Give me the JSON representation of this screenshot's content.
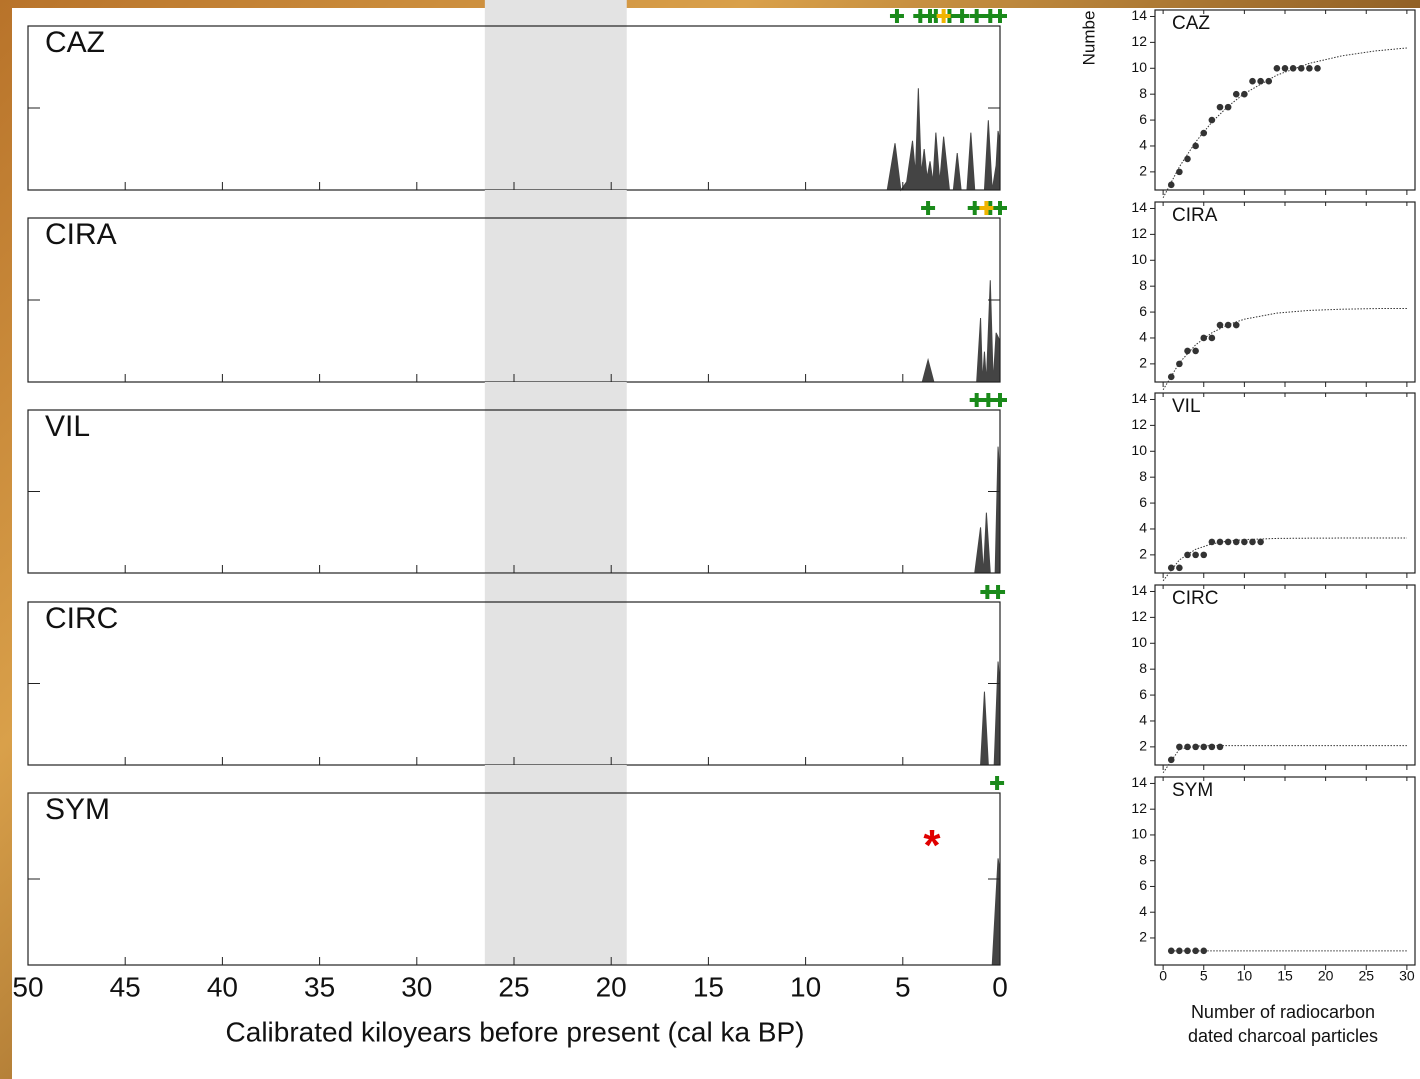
{
  "chart_data": [
    {
      "type": "area",
      "title": "CAZ",
      "color": "#444444",
      "x": [
        5.8,
        5.4,
        5.1,
        4.8,
        4.5,
        4.35,
        4.2,
        4.05,
        3.9,
        3.75,
        3.6,
        3.45,
        3.3,
        3.1,
        2.9,
        2.6,
        2.4,
        2.2,
        2.0,
        1.7,
        1.5,
        1.3,
        0.8,
        0.6,
        0.4,
        0.2,
        0.1,
        0
      ],
      "values": [
        0,
        0.57,
        0,
        0.1,
        0.6,
        0.2,
        1.24,
        0.2,
        0.5,
        0.15,
        0.35,
        0.1,
        0.7,
        0.1,
        0.65,
        0,
        0,
        0.45,
        0,
        0,
        0.7,
        0,
        0,
        0.85,
        0,
        0.3,
        0.72,
        0.6
      ],
      "xlim": [
        50,
        0
      ],
      "ylim": [
        0,
        2
      ],
      "yticks": [
        1
      ],
      "xticks": [
        50,
        45,
        40,
        35,
        30,
        25,
        20,
        15,
        10,
        5,
        0
      ],
      "shaded_span": [
        26.5,
        19.2
      ],
      "dated_ages": [
        5.3,
        4.1,
        3.6,
        3.3,
        2.6,
        1.95,
        1.2,
        0.5,
        0
      ],
      "highlight_ages": [
        2.9
      ]
    },
    {
      "type": "area",
      "title": "CIRA",
      "color": "#444444",
      "x": [
        4.0,
        3.7,
        3.4,
        1.2,
        1.0,
        0.9,
        0.8,
        0.7,
        0.5,
        0.35,
        0.2,
        0
      ],
      "values": [
        0,
        0.27,
        0,
        0,
        0.78,
        0,
        0.37,
        0,
        1.24,
        0,
        0.6,
        0.5
      ],
      "xlim": [
        50,
        0
      ],
      "ylim": [
        0,
        2
      ],
      "yticks": [
        1
      ],
      "xticks": [
        50,
        45,
        40,
        35,
        30,
        25,
        20,
        15,
        10,
        5,
        0
      ],
      "shaded_span": [
        26.5,
        19.2
      ],
      "dated_ages": [
        3.7,
        1.3,
        0.5,
        0
      ],
      "highlight_ages": [
        0.7
      ]
    },
    {
      "type": "area",
      "title": "VIL",
      "color": "#444444",
      "x": [
        1.3,
        1.0,
        0.85,
        0.7,
        0.5,
        0.25,
        0.1,
        0
      ],
      "values": [
        0,
        0.56,
        0,
        0.74,
        0,
        0,
        1.55,
        1.2
      ],
      "xlim": [
        50,
        0
      ],
      "ylim": [
        0,
        2
      ],
      "yticks": [
        1
      ],
      "xticks": [
        50,
        45,
        40,
        35,
        30,
        25,
        20,
        15,
        10,
        5,
        0
      ],
      "shaded_span": [
        26.5,
        19.2
      ],
      "dated_ages": [
        1.2,
        0.6,
        0
      ]
    },
    {
      "type": "area",
      "title": "CIRC",
      "color": "#444444",
      "x": [
        1.0,
        0.8,
        0.6,
        0.3,
        0.1,
        0
      ],
      "values": [
        0,
        0.9,
        0,
        0,
        1.27,
        1.0
      ],
      "xlim": [
        50,
        0
      ],
      "ylim": [
        0,
        2
      ],
      "yticks": [
        1
      ],
      "xticks": [
        50,
        45,
        40,
        35,
        30,
        25,
        20,
        15,
        10,
        5,
        0
      ],
      "shaded_span": [
        26.5,
        19.2
      ],
      "dated_ages": [
        0.65,
        0.1
      ]
    },
    {
      "type": "area",
      "title": "SYM",
      "color": "#444444",
      "x": [
        0.4,
        0.1,
        0
      ],
      "values": [
        0,
        1.24,
        1.1
      ],
      "xlim": [
        50,
        0
      ],
      "ylim": [
        0,
        2
      ],
      "yticks": [
        1
      ],
      "xticks": [
        50,
        45,
        40,
        35,
        30,
        25,
        20,
        15,
        10,
        5,
        0
      ],
      "shaded_span": [
        26.5,
        19.2
      ],
      "dated_ages": [
        0.15
      ],
      "annotation": {
        "text": "*",
        "x": 3.5,
        "y": 1.45
      },
      "xlabel": "Calibrated kiloyears before present (cal ka BP)"
    },
    {
      "type": "scatter",
      "title": "CAZ",
      "ylabel": "Numbe",
      "x": [
        1,
        2,
        3,
        4,
        5,
        6,
        7,
        8,
        9,
        10,
        11,
        12,
        13,
        14,
        15,
        16,
        17,
        18,
        19
      ],
      "values": [
        1,
        2,
        3,
        4,
        5,
        6,
        7,
        7,
        8,
        8,
        9,
        9,
        9,
        10,
        10,
        10,
        10,
        10,
        10
      ],
      "fit": {
        "x": [
          0,
          2,
          4,
          6,
          8,
          10,
          14,
          18,
          22,
          26,
          30
        ],
        "values": [
          0,
          2.39,
          4.31,
          5.84,
          7.07,
          8.05,
          9.47,
          10.38,
          10.96,
          11.33,
          11.57
        ]
      },
      "xlim": [
        -1,
        31
      ],
      "ylim": [
        0.6,
        14.5
      ],
      "yticks": [
        2,
        4,
        6,
        8,
        10,
        12,
        14
      ],
      "xticks": [
        0,
        5,
        10,
        15,
        20,
        25,
        30
      ]
    },
    {
      "type": "scatter",
      "title": "CIRA",
      "x": [
        1,
        2,
        3,
        4,
        5,
        6,
        7,
        8,
        9
      ],
      "values": [
        1,
        2,
        3,
        3,
        4,
        4,
        5,
        5,
        5
      ],
      "fit": {
        "x": [
          0,
          2,
          4,
          6,
          8,
          10,
          14,
          18,
          22,
          26,
          30
        ],
        "values": [
          0,
          2.08,
          3.47,
          4.4,
          5.03,
          5.45,
          5.92,
          6.13,
          6.22,
          6.27,
          6.28
        ]
      },
      "xlim": [
        -1,
        31
      ],
      "ylim": [
        0.6,
        14.5
      ],
      "yticks": [
        2,
        4,
        6,
        8,
        10,
        12,
        14
      ],
      "xticks": [
        0,
        5,
        10,
        15,
        20,
        25,
        30
      ]
    },
    {
      "type": "scatter",
      "title": "VIL",
      "x": [
        1,
        2,
        3,
        4,
        5,
        6,
        7,
        8,
        9,
        10,
        11,
        12
      ],
      "values": [
        1,
        1,
        2,
        2,
        2,
        3,
        3,
        3,
        3,
        3,
        3,
        3
      ],
      "fit": {
        "x": [
          0,
          2,
          4,
          6,
          8,
          10,
          14,
          18,
          22,
          26,
          30
        ],
        "values": [
          0,
          1.61,
          2.43,
          2.85,
          3.07,
          3.18,
          3.27,
          3.29,
          3.3,
          3.3,
          3.3
        ]
      },
      "xlim": [
        -1,
        31
      ],
      "ylim": [
        0.6,
        14.5
      ],
      "yticks": [
        2,
        4,
        6,
        8,
        10,
        12,
        14
      ],
      "xticks": [
        0,
        5,
        10,
        15,
        20,
        25,
        30
      ]
    },
    {
      "type": "scatter",
      "title": "CIRC",
      "x": [
        1,
        2,
        3,
        4,
        5,
        6,
        7
      ],
      "values": [
        1,
        2,
        2,
        2,
        2,
        2,
        2
      ],
      "fit": {
        "x": [
          0,
          2,
          4,
          6,
          8,
          10,
          14,
          18,
          22,
          26,
          30
        ],
        "values": [
          0,
          1.82,
          2.06,
          2.09,
          2.1,
          2.1,
          2.1,
          2.1,
          2.1,
          2.1,
          2.1
        ]
      },
      "xlim": [
        -1,
        31
      ],
      "ylim": [
        0.6,
        14.5
      ],
      "yticks": [
        2,
        4,
        6,
        8,
        10,
        12,
        14
      ],
      "xticks": [
        0,
        5,
        10,
        15,
        20,
        25,
        30
      ]
    },
    {
      "type": "scatter",
      "title": "SYM",
      "x": [
        1,
        2,
        3,
        4,
        5
      ],
      "values": [
        1,
        1,
        1,
        1,
        1
      ],
      "fit": {
        "x": [
          1,
          2,
          4,
          6,
          8,
          10,
          14,
          18,
          22,
          26,
          30
        ],
        "values": [
          1,
          1,
          1,
          1,
          1,
          1,
          1,
          1,
          1,
          1,
          1
        ]
      },
      "xlim": [
        -1,
        31
      ],
      "ylim": [
        -0.1,
        14.5
      ],
      "yticks": [
        2,
        4,
        6,
        8,
        10,
        12,
        14
      ],
      "xticks": [
        0,
        5,
        10,
        15,
        20,
        25,
        30
      ],
      "xlabel": [
        "Number of radiocarbon",
        "dated charcoal particles"
      ]
    }
  ]
}
